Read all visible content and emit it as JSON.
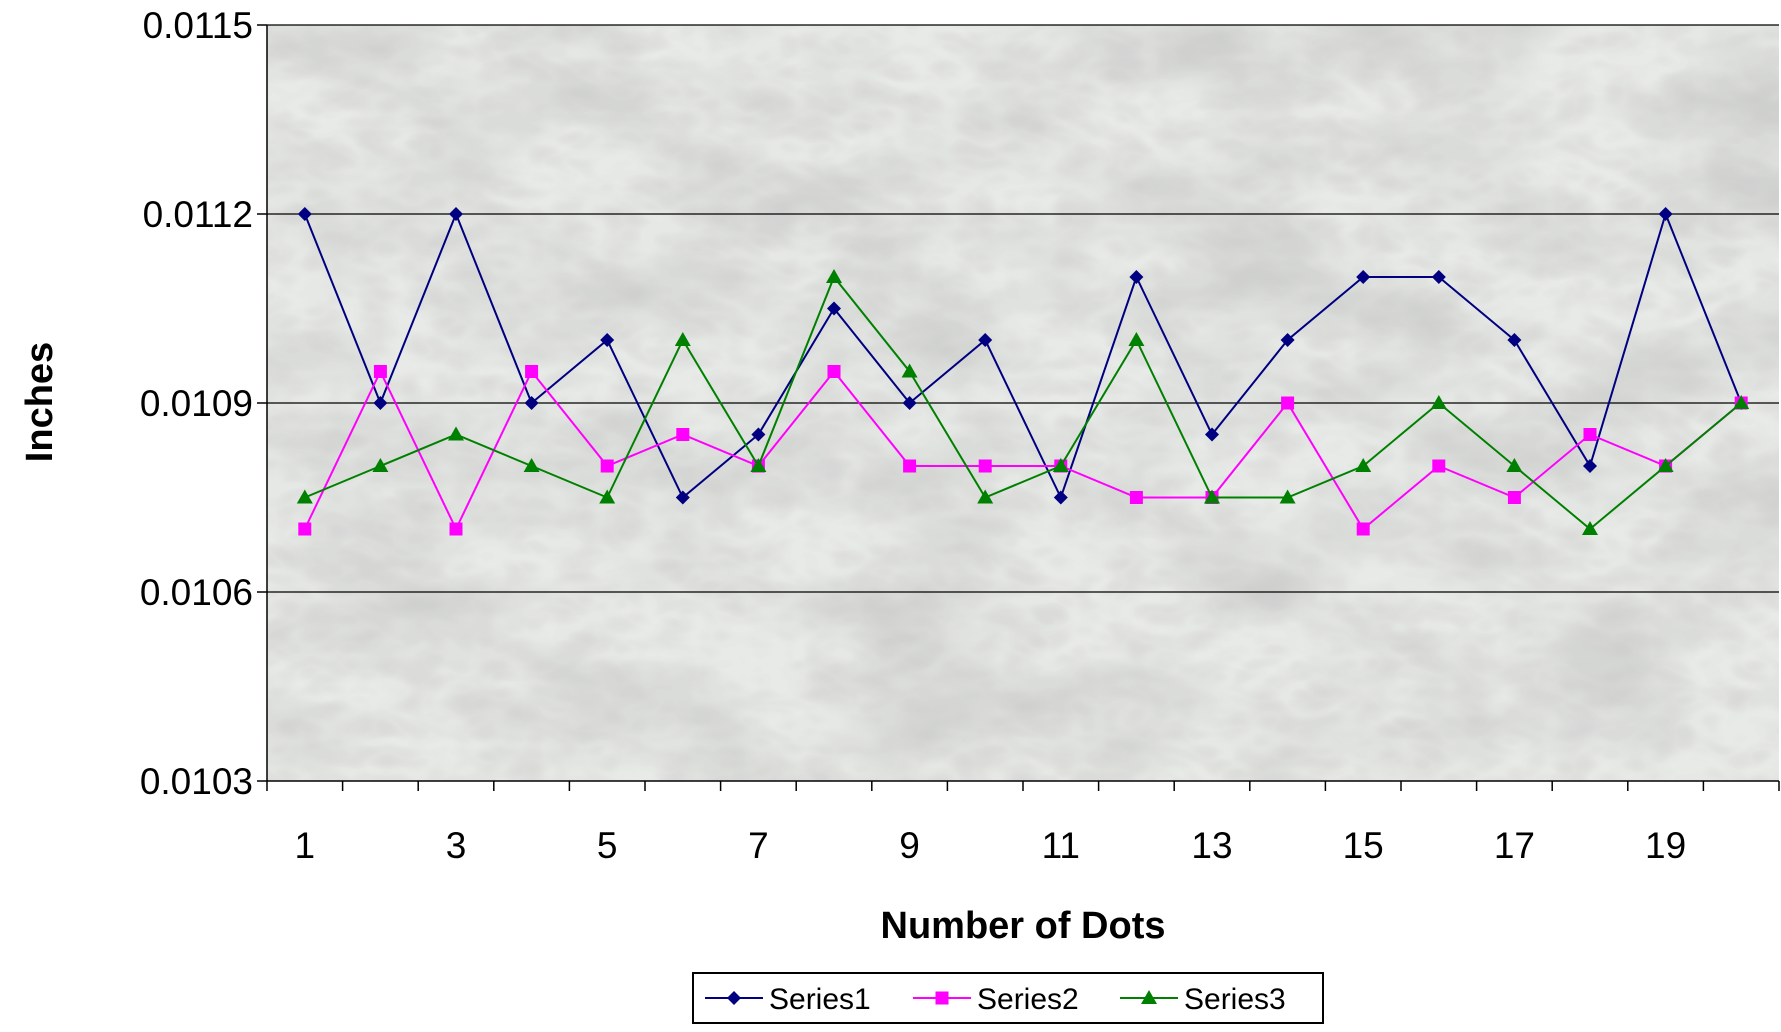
{
  "chart_data": {
    "type": "line",
    "title": "",
    "xlabel": "Number of Dots",
    "ylabel": "Inches",
    "x": [
      1,
      2,
      3,
      4,
      5,
      6,
      7,
      8,
      9,
      10,
      11,
      12,
      13,
      14,
      15,
      16,
      17,
      18,
      19,
      20
    ],
    "x_tick_labels": [
      "1",
      "3",
      "5",
      "7",
      "9",
      "11",
      "13",
      "15",
      "17",
      "19"
    ],
    "y_tick_labels": [
      "0.0115",
      "0.0112",
      "0.0109",
      "0.0106",
      "0.0103"
    ],
    "ylim": [
      0.0103,
      0.0115
    ],
    "y_ticks": [
      0.0103,
      0.0106,
      0.0109,
      0.0112,
      0.0115
    ],
    "grid": true,
    "background": "marble-texture",
    "legend_position": "bottom-center",
    "series": [
      {
        "name": "Series1",
        "color": "#000080",
        "marker": "diamond",
        "values": [
          0.0112,
          0.0109,
          0.0112,
          0.0109,
          0.011,
          0.01075,
          0.01085,
          0.01105,
          0.0109,
          0.011,
          0.01075,
          0.0111,
          0.01085,
          0.011,
          0.0111,
          0.0111,
          0.011,
          0.0108,
          0.0112,
          0.0109
        ]
      },
      {
        "name": "Series2",
        "color": "#ff00ff",
        "marker": "square",
        "values": [
          0.0107,
          0.01095,
          0.0107,
          0.01095,
          0.0108,
          0.01085,
          0.0108,
          0.01095,
          0.0108,
          0.0108,
          0.0108,
          0.01075,
          0.01075,
          0.0109,
          0.0107,
          0.0108,
          0.01075,
          0.01085,
          0.0108,
          0.0109
        ]
      },
      {
        "name": "Series3",
        "color": "#008000",
        "marker": "triangle",
        "values": [
          0.01075,
          0.0108,
          0.01085,
          0.0108,
          0.01075,
          0.011,
          0.0108,
          0.0111,
          0.01095,
          0.01075,
          0.0108,
          0.011,
          0.01075,
          0.01075,
          0.0108,
          0.0109,
          0.0108,
          0.0107,
          0.0108,
          0.0109
        ]
      }
    ]
  }
}
